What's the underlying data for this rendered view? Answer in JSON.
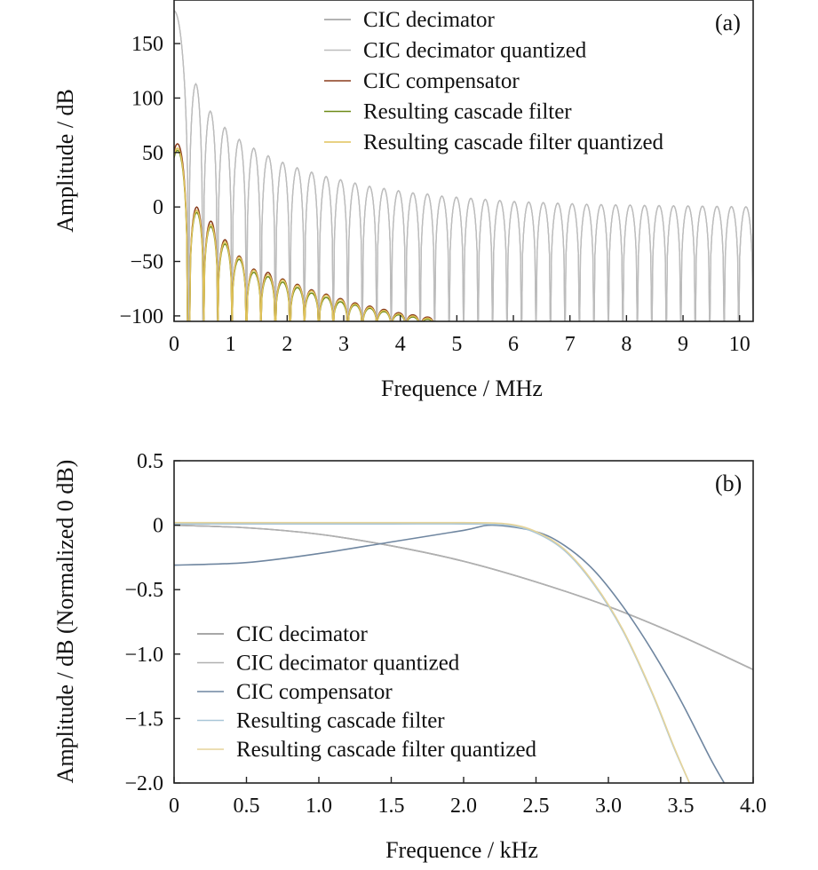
{
  "chart_data": [
    {
      "type": "line",
      "panel_label": "(a)",
      "xlabel": "Frequence / MHz",
      "ylabel": "Amplitude / dB",
      "xlim": [
        0,
        10.24
      ],
      "ylim": [
        -105,
        190
      ],
      "xticks": [
        0,
        1,
        2,
        3,
        4,
        5,
        6,
        7,
        8,
        9,
        10
      ],
      "xtick_labels": [
        "0",
        "1",
        "2",
        "3",
        "4",
        "5",
        "6",
        "7",
        "8",
        "9",
        "10"
      ],
      "yticks": [
        -100,
        -50,
        0,
        50,
        100,
        150
      ],
      "ytick_labels": [
        "−100",
        "−50",
        "0",
        "50",
        "100",
        "150"
      ],
      "grid": false,
      "legend_position": "top-right",
      "lobe_spacing_mhz": 0.256,
      "series": [
        {
          "name": "CIC decimator",
          "color": "#9a9a9a",
          "lobe_peak_x": [
            0.0,
            0.384,
            0.64,
            0.896,
            1.152,
            1.408,
            1.664,
            1.92,
            2.176,
            2.432,
            2.688,
            2.944,
            3.2,
            3.456,
            3.712,
            3.968,
            4.224,
            4.48,
            4.736,
            4.992,
            5.248,
            5.504,
            5.76,
            6.016,
            6.272,
            6.528,
            6.784,
            7.04,
            7.296,
            7.552,
            7.808,
            8.064,
            8.32,
            8.576,
            8.832,
            9.088,
            9.344,
            9.6,
            9.856,
            10.112
          ],
          "lobe_peak_y": [
            180,
            113,
            88,
            73,
            62,
            54,
            47,
            41,
            36,
            32,
            28,
            25,
            22,
            19,
            17,
            15,
            13,
            12,
            10,
            9,
            8,
            7,
            6,
            5,
            4.5,
            4,
            3.5,
            3,
            2.5,
            2.2,
            2,
            1.8,
            1.5,
            1.3,
            1.1,
            1,
            0.8,
            0.6,
            0.4,
            0.2
          ]
        },
        {
          "name": "CIC decimator quantized",
          "color": "#bdbdbd",
          "lobe_peak_x": [
            0.0,
            0.384,
            0.64,
            0.896,
            1.152,
            1.408,
            1.664,
            1.92,
            2.176,
            2.432,
            2.688,
            2.944,
            3.2,
            3.456,
            3.712,
            3.968,
            4.224,
            4.48,
            4.736,
            4.992,
            5.248,
            5.504,
            5.76,
            6.016,
            6.272,
            6.528,
            6.784,
            7.04,
            7.296,
            7.552,
            7.808,
            8.064,
            8.32,
            8.576,
            8.832,
            9.088,
            9.344,
            9.6,
            9.856,
            10.112
          ],
          "lobe_peak_y": [
            180,
            113,
            88,
            73,
            62,
            54,
            47,
            41,
            36,
            32,
            28,
            25,
            22,
            19,
            17,
            15,
            13,
            12,
            10,
            9,
            8,
            7,
            6,
            5,
            4.5,
            4,
            3.5,
            3,
            2.5,
            2.2,
            2,
            1.8,
            1.5,
            1.3,
            1.1,
            1,
            0.8,
            0.6,
            0.4,
            0.2
          ]
        },
        {
          "name": "CIC compensator",
          "color": "#8a3c1c",
          "lobe_peak_x": [
            0.06,
            0.4,
            0.65,
            0.9,
            1.15,
            1.41,
            1.66,
            1.92,
            2.18,
            2.43,
            2.69,
            2.94,
            3.2,
            3.46,
            3.71,
            3.97,
            4.22,
            4.48
          ],
          "lobe_peak_y": [
            58,
            0,
            -13,
            -30,
            -45,
            -57,
            -60,
            -66,
            -71,
            -76,
            -80,
            -84,
            -88,
            -91,
            -94,
            -97,
            -99,
            -101
          ]
        },
        {
          "name": "Resulting cascade filter",
          "color": "#6e8a18",
          "lobe_peak_x": [
            0.06,
            0.4,
            0.65,
            0.9,
            1.15,
            1.41,
            1.66,
            1.92,
            2.18,
            2.43,
            2.69,
            2.94,
            3.2,
            3.46,
            3.71,
            3.97,
            4.22,
            4.48
          ],
          "lobe_peak_y": [
            52,
            -5,
            -18,
            -34,
            -48,
            -60,
            -64,
            -69,
            -74,
            -79,
            -83,
            -87,
            -90,
            -93,
            -96,
            -99,
            -101,
            -103
          ]
        },
        {
          "name": "Resulting cascade filter quantized",
          "color": "#e0c25a",
          "lobe_peak_x": [
            0.06,
            0.4,
            0.65,
            0.9,
            1.15,
            1.41,
            1.66,
            1.92,
            2.18,
            2.43,
            2.69,
            2.94,
            3.2,
            3.46,
            3.71,
            3.97,
            4.22,
            4.48
          ],
          "lobe_peak_y": [
            54,
            -3,
            -16,
            -32,
            -46,
            -58,
            -62,
            -67,
            -72,
            -77,
            -81,
            -85,
            -89,
            -92,
            -95,
            -98,
            -100,
            -102
          ]
        }
      ]
    },
    {
      "type": "line",
      "panel_label": "(b)",
      "xlabel": "Frequence / kHz",
      "ylabel": "Amplitude / dB (Normalized 0 dB)",
      "xlim": [
        0,
        4.0
      ],
      "ylim": [
        -2.0,
        0.5
      ],
      "xticks": [
        0,
        0.5,
        1.0,
        1.5,
        2.0,
        2.5,
        3.0,
        3.5,
        4.0
      ],
      "xtick_labels": [
        "0",
        "0.5",
        "1.0",
        "1.5",
        "2.0",
        "2.5",
        "3.0",
        "3.5",
        "4.0"
      ],
      "yticks": [
        0.5,
        0,
        -0.5,
        -1.0,
        -1.5,
        -2.0
      ],
      "ytick_labels": [
        "0.5",
        "0",
        "−0.5",
        "−1.0",
        "−1.5",
        "−2.0"
      ],
      "grid": false,
      "legend_position": "bottom-left",
      "series": [
        {
          "name": "CIC decimator",
          "color": "#8a8a8a",
          "x": [
            0,
            0.5,
            1.0,
            1.5,
            2.0,
            2.5,
            3.0,
            3.5,
            4.0
          ],
          "y": [
            0,
            -0.02,
            -0.07,
            -0.16,
            -0.28,
            -0.44,
            -0.63,
            -0.86,
            -1.12
          ]
        },
        {
          "name": "CIC decimator quantized",
          "color": "#b0b0b0",
          "x": [
            0,
            0.5,
            1.0,
            1.5,
            2.0,
            2.5,
            3.0,
            3.5,
            4.0
          ],
          "y": [
            0,
            -0.02,
            -0.07,
            -0.16,
            -0.28,
            -0.44,
            -0.63,
            -0.86,
            -1.12
          ]
        },
        {
          "name": "CIC compensator",
          "color": "#6f86a0",
          "x": [
            0,
            0.5,
            1.0,
            1.5,
            2.0,
            2.2,
            2.5,
            2.7,
            2.9,
            3.1,
            3.3,
            3.5,
            3.7,
            3.8
          ],
          "y": [
            -0.31,
            -0.29,
            -0.22,
            -0.13,
            -0.04,
            0,
            -0.05,
            -0.16,
            -0.35,
            -0.63,
            -0.97,
            -1.36,
            -1.8,
            -2.0
          ]
        },
        {
          "name": "Resulting cascade filter",
          "color": "#a9c6d8",
          "x": [
            0,
            0.5,
            1.0,
            1.5,
            2.0,
            2.3,
            2.5,
            2.7,
            2.9,
            3.1,
            3.3,
            3.45,
            3.56
          ],
          "y": [
            0.01,
            0.01,
            0.01,
            0.01,
            0.01,
            0.0,
            -0.06,
            -0.2,
            -0.46,
            -0.82,
            -1.3,
            -1.72,
            -2.0
          ]
        },
        {
          "name": "Resulting cascade filter quantized",
          "color": "#e6d49a",
          "x": [
            0,
            0.5,
            1.0,
            1.5,
            2.0,
            2.3,
            2.5,
            2.7,
            2.9,
            3.1,
            3.3,
            3.45,
            3.56
          ],
          "y": [
            0.02,
            0.02,
            0.02,
            0.02,
            0.02,
            0.01,
            -0.05,
            -0.19,
            -0.45,
            -0.81,
            -1.29,
            -1.71,
            -2.0
          ]
        }
      ]
    }
  ]
}
